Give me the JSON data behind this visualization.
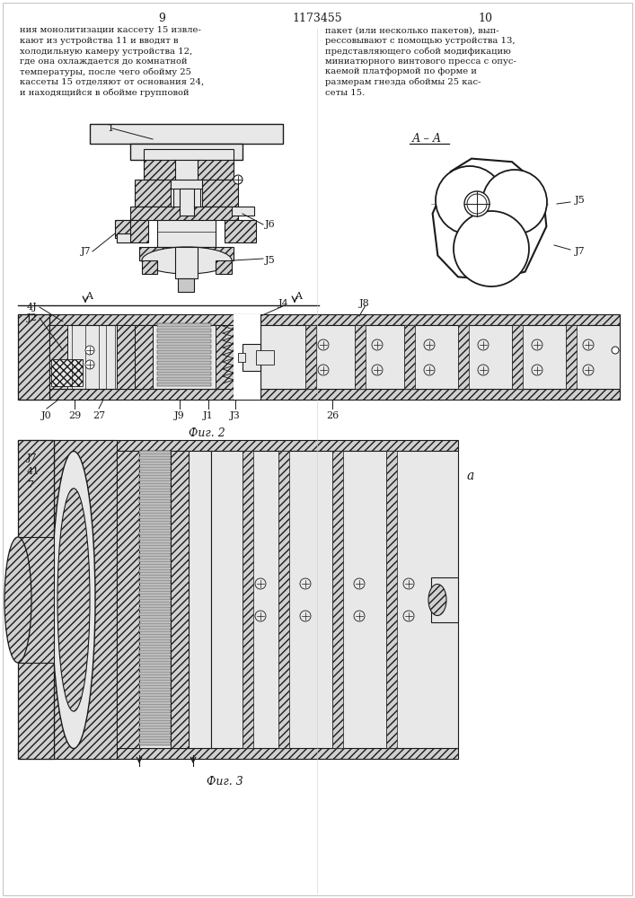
{
  "page_number_left": "9",
  "page_number_right": "10",
  "patent_number": "1173455",
  "text_left_lines": [
    "ния монолитизации кассету 15 извле-",
    "кают из устройства 11 и вводят в",
    "холодильную камеру устройства 12,",
    "где она охлаждается до комнатной",
    "температуры, после чего обойму 25",
    "кассеты 15 отделяют от основания 24,",
    "и находящийся в обойме групповой"
  ],
  "text_right_lines": [
    "пакет (или несколько пакетов), вып-",
    "рессовывают с помощью устройства 13,",
    "представляющего собой модификацию",
    "миниатюрного винтового пресса с опус-",
    "каемой платформой по форме и",
    "размерам гнезда обоймы 25 кас-",
    "сеты 15."
  ],
  "fig2_label": "Фиг. 2",
  "fig3_label": "Фиг. 3",
  "section_label": "А – А",
  "fig_a_label": "а",
  "bg_color": "#ffffff",
  "lc": "#1a1a1a",
  "tc": "#1a1a1a",
  "hatch_fc": "#d0d0d0",
  "hatch_fc2": "#e8e8e8",
  "fs_text": 7.2,
  "fs_label": 8.0,
  "fs_page": 9.0
}
